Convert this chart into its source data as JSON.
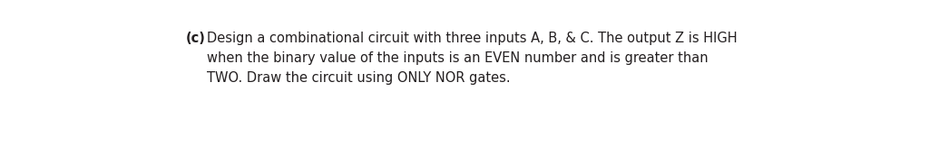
{
  "background_color": "#ffffff",
  "label_bold": "(c)",
  "line1_after_label": "Design a combinational circuit with three inputs A, B, & C. The output Z is HIGH",
  "line2": "when the binary value of the inputs is an EVEN number and is greater than",
  "line3": "TWO. Draw the circuit using ONLY NOR gates.",
  "text_color": "#231f20",
  "font_size": 10.5,
  "figwidth": 10.24,
  "figheight": 1.73,
  "dpi": 100
}
